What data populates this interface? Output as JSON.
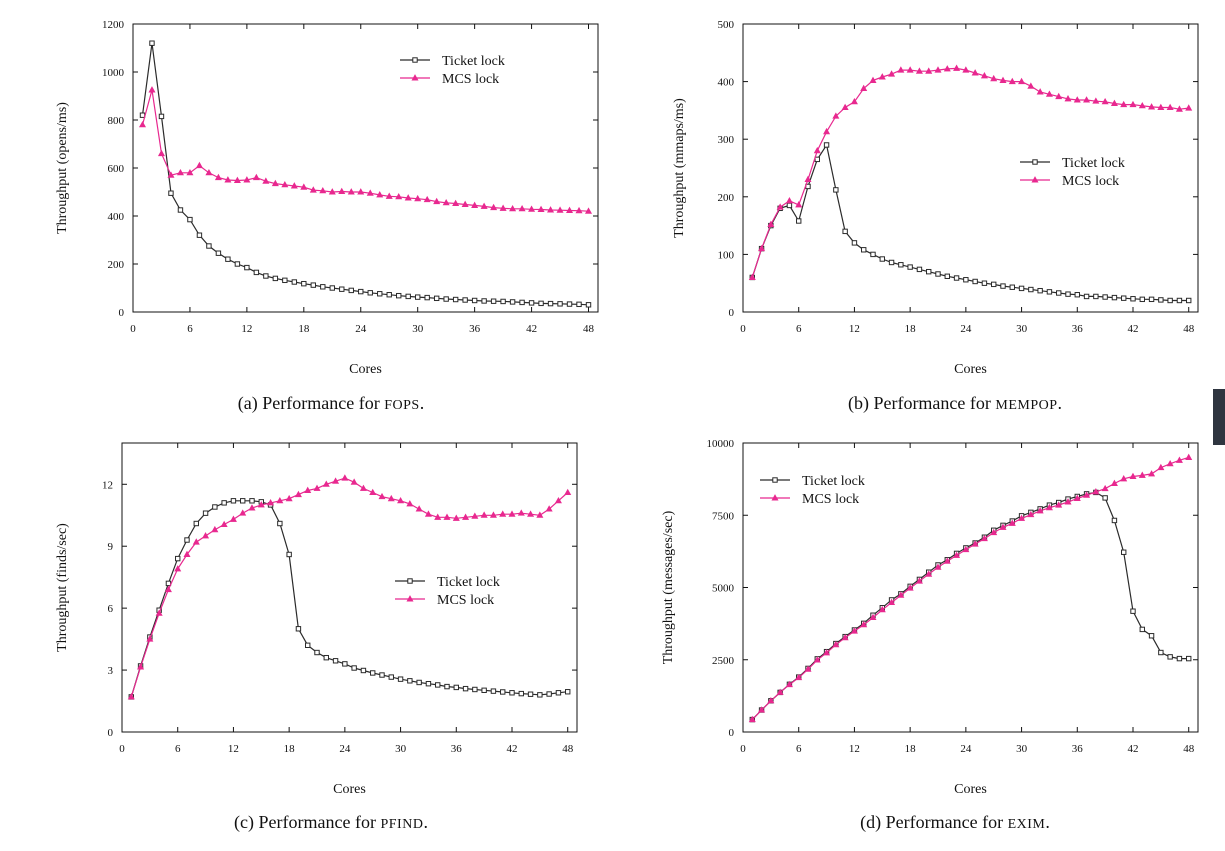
{
  "figures": [
    {
      "id": "a",
      "caption_label": "(a)",
      "caption_text": "Performance for",
      "caption_name": "FOPS",
      "caption_end": "."
    },
    {
      "id": "b",
      "caption_label": "(b)",
      "caption_text": "Performance for",
      "caption_name": "MEMPOP",
      "caption_end": "."
    },
    {
      "id": "c",
      "caption_label": "(c)",
      "caption_text": "Performance for",
      "caption_name": "PFIND",
      "caption_end": "."
    },
    {
      "id": "d",
      "caption_label": "(d)",
      "caption_text": "Performance for",
      "caption_name": "EXIM",
      "caption_end": "."
    }
  ],
  "colors": {
    "ticket": "#2b2b2b",
    "mcs": "#e8288f",
    "axis": "#111111"
  },
  "chart_data": [
    {
      "type": "line",
      "xlabel": "Cores",
      "ylabel": "Throughput (opens/ms)",
      "xlim": [
        0,
        49
      ],
      "ylim": [
        0,
        1200
      ],
      "xticks": [
        0,
        6,
        12,
        18,
        24,
        30,
        36,
        42,
        48
      ],
      "yticks": [
        0,
        200,
        400,
        600,
        800,
        1000,
        1200
      ],
      "legend_position": "top-right",
      "series": [
        {
          "name": "Ticket lock",
          "marker": "square",
          "x": [
            1,
            2,
            3,
            4,
            5,
            6,
            7,
            8,
            9,
            10,
            11,
            12,
            13,
            14,
            15,
            16,
            17,
            18,
            19,
            20,
            21,
            22,
            23,
            24,
            25,
            26,
            27,
            28,
            29,
            30,
            31,
            32,
            33,
            34,
            35,
            36,
            37,
            38,
            39,
            40,
            41,
            42,
            43,
            44,
            45,
            46,
            47,
            48
          ],
          "values": [
            820,
            1120,
            815,
            495,
            425,
            385,
            320,
            275,
            245,
            220,
            200,
            185,
            165,
            150,
            140,
            132,
            125,
            118,
            112,
            105,
            100,
            95,
            90,
            85,
            80,
            76,
            72,
            68,
            65,
            62,
            60,
            57,
            54,
            52,
            50,
            48,
            46,
            45,
            44,
            42,
            40,
            38,
            36,
            35,
            34,
            33,
            32,
            30
          ]
        },
        {
          "name": "MCS lock",
          "marker": "triangle",
          "x": [
            1,
            2,
            3,
            4,
            5,
            6,
            7,
            8,
            9,
            10,
            11,
            12,
            13,
            14,
            15,
            16,
            17,
            18,
            19,
            20,
            21,
            22,
            23,
            24,
            25,
            26,
            27,
            28,
            29,
            30,
            31,
            32,
            33,
            34,
            35,
            36,
            37,
            38,
            39,
            40,
            41,
            42,
            43,
            44,
            45,
            46,
            47,
            48
          ],
          "values": [
            780,
            925,
            660,
            570,
            580,
            580,
            610,
            580,
            560,
            550,
            548,
            550,
            560,
            545,
            535,
            530,
            525,
            520,
            508,
            505,
            500,
            502,
            500,
            500,
            495,
            488,
            482,
            480,
            475,
            472,
            468,
            460,
            455,
            452,
            448,
            444,
            440,
            435,
            432,
            430,
            430,
            428,
            427,
            425,
            424,
            423,
            422,
            420
          ]
        }
      ]
    },
    {
      "type": "line",
      "xlabel": "Cores",
      "ylabel": "Throughput (mmaps/ms)",
      "xlim": [
        0,
        49
      ],
      "ylim": [
        0,
        500
      ],
      "xticks": [
        0,
        6,
        12,
        18,
        24,
        30,
        36,
        42,
        48
      ],
      "yticks": [
        0,
        100,
        200,
        300,
        400,
        500
      ],
      "legend_position": "middle-right",
      "series": [
        {
          "name": "Ticket lock",
          "marker": "square",
          "x": [
            1,
            2,
            3,
            4,
            5,
            6,
            7,
            8,
            9,
            10,
            11,
            12,
            13,
            14,
            15,
            16,
            17,
            18,
            19,
            20,
            21,
            22,
            23,
            24,
            25,
            26,
            27,
            28,
            29,
            30,
            31,
            32,
            33,
            34,
            35,
            36,
            37,
            38,
            39,
            40,
            41,
            42,
            43,
            44,
            45,
            46,
            47,
            48
          ],
          "values": [
            60,
            110,
            150,
            180,
            185,
            158,
            218,
            265,
            290,
            212,
            140,
            120,
            108,
            100,
            92,
            86,
            82,
            78,
            74,
            70,
            66,
            62,
            59,
            56,
            53,
            50,
            48,
            45,
            43,
            41,
            39,
            37,
            35,
            33,
            31,
            30,
            27,
            27,
            26,
            25,
            24,
            23,
            22,
            22,
            21,
            20,
            20,
            20
          ]
        },
        {
          "name": "MCS lock",
          "marker": "triangle",
          "x": [
            1,
            2,
            3,
            4,
            5,
            6,
            7,
            8,
            9,
            10,
            11,
            12,
            13,
            14,
            15,
            16,
            17,
            18,
            19,
            20,
            21,
            22,
            23,
            24,
            25,
            26,
            27,
            28,
            29,
            30,
            31,
            32,
            33,
            34,
            35,
            36,
            37,
            38,
            39,
            40,
            41,
            42,
            43,
            44,
            45,
            46,
            47,
            48
          ],
          "values": [
            60,
            110,
            152,
            182,
            193,
            186,
            230,
            280,
            313,
            340,
            355,
            365,
            388,
            402,
            408,
            413,
            420,
            420,
            418,
            418,
            420,
            422,
            423,
            420,
            415,
            410,
            405,
            402,
            400,
            400,
            392,
            382,
            378,
            374,
            370,
            368,
            368,
            366,
            365,
            362,
            360,
            360,
            358,
            356,
            355,
            355,
            352,
            354
          ]
        }
      ]
    },
    {
      "type": "line",
      "xlabel": "Cores",
      "ylabel": "Throughput (finds/sec)",
      "xlim": [
        0,
        49
      ],
      "ylim": [
        0,
        14
      ],
      "xticks": [
        0,
        6,
        12,
        18,
        24,
        30,
        36,
        42,
        48
      ],
      "yticks": [
        0,
        3,
        6,
        9,
        12
      ],
      "legend_position": "middle-right",
      "series": [
        {
          "name": "Ticket lock",
          "marker": "square",
          "x": [
            1,
            2,
            3,
            4,
            5,
            6,
            7,
            8,
            9,
            10,
            11,
            12,
            13,
            14,
            15,
            16,
            17,
            18,
            19,
            20,
            21,
            22,
            23,
            24,
            25,
            26,
            27,
            28,
            29,
            30,
            31,
            32,
            33,
            34,
            35,
            36,
            37,
            38,
            39,
            40,
            41,
            42,
            43,
            44,
            45,
            46,
            47,
            48
          ],
          "values": [
            1.7,
            3.2,
            4.6,
            5.9,
            7.2,
            8.4,
            9.3,
            10.1,
            10.6,
            10.9,
            11.1,
            11.2,
            11.2,
            11.2,
            11.15,
            11.0,
            10.1,
            8.6,
            5.0,
            4.2,
            3.85,
            3.6,
            3.45,
            3.3,
            3.1,
            2.98,
            2.86,
            2.76,
            2.66,
            2.56,
            2.48,
            2.4,
            2.34,
            2.28,
            2.2,
            2.16,
            2.1,
            2.06,
            2.02,
            1.98,
            1.94,
            1.9,
            1.86,
            1.83,
            1.8,
            1.84,
            1.9,
            1.95
          ]
        },
        {
          "name": "MCS lock",
          "marker": "triangle",
          "x": [
            1,
            2,
            3,
            4,
            5,
            6,
            7,
            8,
            9,
            10,
            11,
            12,
            13,
            14,
            15,
            16,
            17,
            18,
            19,
            20,
            21,
            22,
            23,
            24,
            25,
            26,
            27,
            28,
            29,
            30,
            31,
            32,
            33,
            34,
            35,
            36,
            37,
            38,
            39,
            40,
            41,
            42,
            43,
            44,
            45,
            46,
            47,
            48
          ],
          "values": [
            1.7,
            3.15,
            4.5,
            5.75,
            6.9,
            7.9,
            8.6,
            9.2,
            9.5,
            9.8,
            10.05,
            10.3,
            10.6,
            10.85,
            11.0,
            11.1,
            11.2,
            11.3,
            11.5,
            11.7,
            11.8,
            12.0,
            12.15,
            12.3,
            12.1,
            11.8,
            11.6,
            11.4,
            11.3,
            11.2,
            11.05,
            10.8,
            10.55,
            10.4,
            10.4,
            10.35,
            10.4,
            10.45,
            10.5,
            10.5,
            10.55,
            10.55,
            10.6,
            10.55,
            10.5,
            10.8,
            11.2,
            11.6
          ]
        }
      ]
    },
    {
      "type": "line",
      "xlabel": "Cores",
      "ylabel": "Throughput (messages/sec)",
      "xlim": [
        0,
        49
      ],
      "ylim": [
        0,
        10000
      ],
      "xticks": [
        0,
        6,
        12,
        18,
        24,
        30,
        36,
        42,
        48
      ],
      "yticks": [
        0,
        2500,
        5000,
        7500,
        10000
      ],
      "legend_position": "top-left",
      "series": [
        {
          "name": "Ticket lock",
          "marker": "square",
          "x": [
            1,
            2,
            3,
            4,
            5,
            6,
            7,
            8,
            9,
            10,
            11,
            12,
            13,
            14,
            15,
            16,
            17,
            18,
            19,
            20,
            21,
            22,
            23,
            24,
            25,
            26,
            27,
            28,
            29,
            30,
            31,
            32,
            33,
            34,
            35,
            36,
            37,
            38,
            39,
            40,
            41,
            42,
            43,
            44,
            45,
            46,
            47,
            48
          ],
          "values": [
            430,
            760,
            1080,
            1370,
            1650,
            1900,
            2200,
            2530,
            2780,
            3060,
            3300,
            3530,
            3760,
            4040,
            4300,
            4570,
            4780,
            5040,
            5280,
            5530,
            5780,
            5960,
            6180,
            6370,
            6540,
            6740,
            6980,
            7150,
            7300,
            7480,
            7600,
            7720,
            7850,
            7940,
            8060,
            8150,
            8240,
            8290,
            8100,
            7320,
            6220,
            4180,
            3550,
            3330,
            2750,
            2600,
            2540,
            2540
          ]
        },
        {
          "name": "MCS lock",
          "marker": "triangle",
          "x": [
            1,
            2,
            3,
            4,
            5,
            6,
            7,
            8,
            9,
            10,
            11,
            12,
            13,
            14,
            15,
            16,
            17,
            18,
            19,
            20,
            21,
            22,
            23,
            24,
            25,
            26,
            27,
            28,
            29,
            30,
            31,
            32,
            33,
            34,
            35,
            36,
            37,
            38,
            39,
            40,
            41,
            42,
            43,
            44,
            45,
            46,
            47,
            48
          ],
          "values": [
            430,
            760,
            1080,
            1370,
            1640,
            1880,
            2170,
            2490,
            2740,
            3020,
            3260,
            3490,
            3710,
            3960,
            4230,
            4480,
            4730,
            4980,
            5220,
            5460,
            5700,
            5910,
            6110,
            6310,
            6500,
            6690,
            6900,
            7080,
            7220,
            7390,
            7520,
            7650,
            7760,
            7850,
            7960,
            8080,
            8190,
            8310,
            8420,
            8600,
            8760,
            8840,
            8880,
            8930,
            9150,
            9280,
            9400,
            9500
          ]
        }
      ]
    }
  ]
}
